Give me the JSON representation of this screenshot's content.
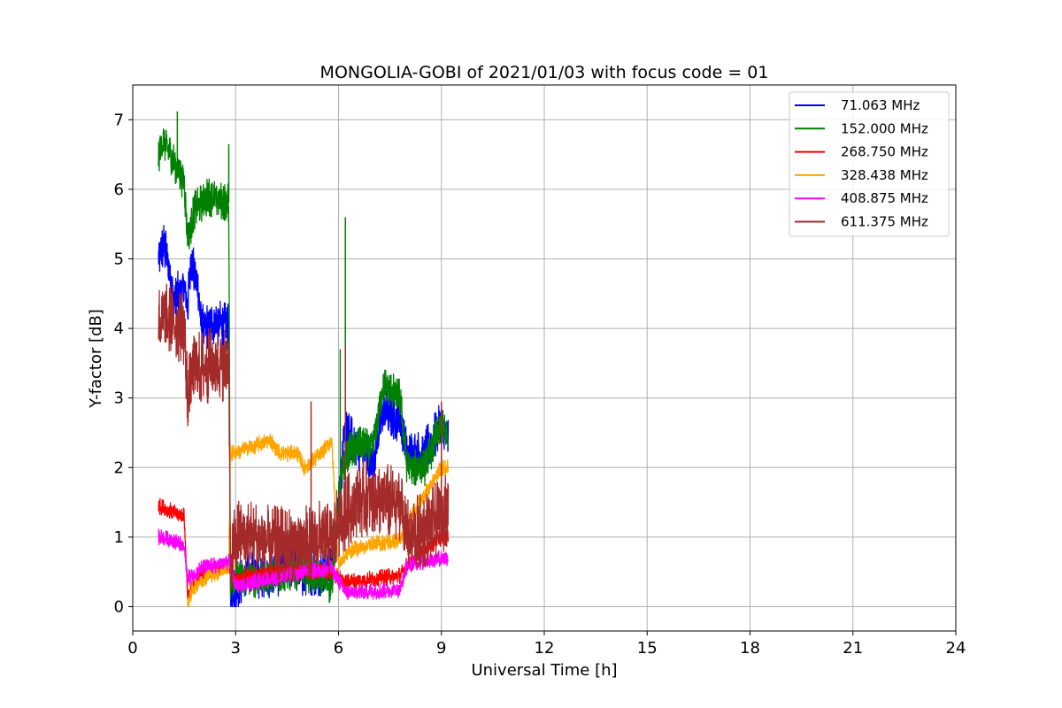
{
  "chart_data": {
    "type": "line",
    "title": "MONGOLIA-GOBI of 2021/01/03 with focus code = 01",
    "xlabel": "Universal Time [h]",
    "ylabel": "Y-factor [dB]",
    "xlim": [
      0,
      24
    ],
    "ylim": [
      -0.35,
      7.5
    ],
    "xticks": [
      0,
      3,
      6,
      9,
      12,
      15,
      18,
      21,
      24
    ],
    "yticks": [
      0,
      1,
      2,
      3,
      4,
      5,
      6,
      7
    ],
    "grid": true,
    "legend_position": "top-right",
    "series": [
      {
        "name": " 71.063 MHz",
        "color": "#0000ff",
        "noise": 0.35,
        "points": [
          [
            0.75,
            5.0
          ],
          [
            0.9,
            5.2
          ],
          [
            1.0,
            5.0
          ],
          [
            1.2,
            4.4
          ],
          [
            1.5,
            4.6
          ],
          [
            1.6,
            4.3
          ],
          [
            1.7,
            5.0
          ],
          [
            1.9,
            4.6
          ],
          [
            2.0,
            4.0
          ],
          [
            2.4,
            4.1
          ],
          [
            2.8,
            4.0
          ],
          [
            2.85,
            0.2
          ],
          [
            3.0,
            0.3
          ],
          [
            3.5,
            0.5
          ],
          [
            4.0,
            0.4
          ],
          [
            4.5,
            0.6
          ],
          [
            5.0,
            0.5
          ],
          [
            5.5,
            0.5
          ],
          [
            5.8,
            0.6
          ],
          [
            6.2,
            2.5
          ],
          [
            6.6,
            2.3
          ],
          [
            7.0,
            2.1
          ],
          [
            7.3,
            2.8
          ],
          [
            7.8,
            2.7
          ],
          [
            8.0,
            2.2
          ],
          [
            8.5,
            2.2
          ],
          [
            9.0,
            2.6
          ],
          [
            9.2,
            2.4
          ]
        ]
      },
      {
        "name": "152.000 MHz",
        "color": "#008000",
        "noise": 0.28,
        "points": [
          [
            0.75,
            6.5
          ],
          [
            0.9,
            6.7
          ],
          [
            1.2,
            6.4
          ],
          [
            1.5,
            6.1
          ],
          [
            1.6,
            5.3
          ],
          [
            1.8,
            5.7
          ],
          [
            2.2,
            5.9
          ],
          [
            2.8,
            5.8
          ],
          [
            2.85,
            0.3
          ],
          [
            3.0,
            0.4
          ],
          [
            3.5,
            0.4
          ],
          [
            4.0,
            0.4
          ],
          [
            4.5,
            0.5
          ],
          [
            5.0,
            0.5
          ],
          [
            5.5,
            0.4
          ],
          [
            5.8,
            0.3
          ],
          [
            6.0,
            1.5
          ],
          [
            6.2,
            2.2
          ],
          [
            6.6,
            2.3
          ],
          [
            7.0,
            2.3
          ],
          [
            7.3,
            3.2
          ],
          [
            7.8,
            3.0
          ],
          [
            8.0,
            2.0
          ],
          [
            8.5,
            2.0
          ],
          [
            9.0,
            2.6
          ],
          [
            9.2,
            2.4
          ]
        ]
      },
      {
        "name": "268.750 MHz",
        "color": "#ff0000",
        "noise": 0.12,
        "points": [
          [
            0.75,
            1.45
          ],
          [
            1.0,
            1.4
          ],
          [
            1.5,
            1.3
          ],
          [
            1.6,
            0.15
          ],
          [
            2.0,
            0.5
          ],
          [
            2.5,
            0.55
          ],
          [
            2.8,
            0.6
          ],
          [
            3.0,
            0.4
          ],
          [
            4.0,
            0.5
          ],
          [
            5.0,
            0.5
          ],
          [
            5.8,
            0.5
          ],
          [
            6.2,
            0.35
          ],
          [
            7.0,
            0.4
          ],
          [
            7.8,
            0.45
          ],
          [
            8.0,
            0.6
          ],
          [
            9.0,
            1.0
          ],
          [
            9.2,
            1.0
          ]
        ]
      },
      {
        "name": "328.438 MHz",
        "color": "#ffa500",
        "noise": 0.12,
        "points": [
          [
            1.6,
            0.05
          ],
          [
            1.8,
            0.3
          ],
          [
            2.2,
            0.45
          ],
          [
            2.8,
            0.55
          ],
          [
            2.85,
            2.2
          ],
          [
            3.5,
            2.3
          ],
          [
            4.0,
            2.4
          ],
          [
            4.3,
            2.2
          ],
          [
            4.8,
            2.2
          ],
          [
            5.0,
            2.0
          ],
          [
            5.5,
            2.2
          ],
          [
            5.8,
            2.4
          ],
          [
            6.0,
            0.6
          ],
          [
            6.3,
            0.8
          ],
          [
            7.0,
            0.9
          ],
          [
            7.8,
            0.95
          ],
          [
            8.0,
            1.2
          ],
          [
            9.0,
            2.0
          ],
          [
            9.2,
            2.0
          ]
        ]
      },
      {
        "name": "408.875 MHz",
        "color": "#ff00ff",
        "noise": 0.12,
        "points": [
          [
            0.75,
            1.0
          ],
          [
            1.2,
            0.95
          ],
          [
            1.5,
            0.85
          ],
          [
            1.6,
            0.4
          ],
          [
            2.0,
            0.55
          ],
          [
            2.5,
            0.6
          ],
          [
            2.8,
            0.65
          ],
          [
            3.0,
            0.3
          ],
          [
            4.0,
            0.4
          ],
          [
            5.0,
            0.5
          ],
          [
            5.8,
            0.55
          ],
          [
            6.2,
            0.2
          ],
          [
            7.0,
            0.22
          ],
          [
            7.8,
            0.25
          ],
          [
            8.0,
            0.6
          ],
          [
            9.0,
            0.7
          ],
          [
            9.2,
            0.7
          ]
        ]
      },
      {
        "name": "611.375 MHz",
        "color": "#a52a2a",
        "noise": 0.55,
        "points": [
          [
            0.75,
            4.1
          ],
          [
            1.2,
            4.1
          ],
          [
            1.5,
            4.0
          ],
          [
            1.6,
            3.0
          ],
          [
            1.8,
            3.4
          ],
          [
            2.5,
            3.5
          ],
          [
            2.8,
            3.5
          ],
          [
            2.85,
            0.5
          ],
          [
            3.0,
            1.0
          ],
          [
            3.5,
            1.0
          ],
          [
            4.0,
            0.9
          ],
          [
            4.5,
            0.9
          ],
          [
            5.0,
            0.9
          ],
          [
            5.5,
            1.0
          ],
          [
            5.8,
            0.9
          ],
          [
            6.0,
            1.2
          ],
          [
            6.5,
            1.5
          ],
          [
            7.0,
            1.6
          ],
          [
            7.5,
            1.5
          ],
          [
            7.8,
            1.5
          ],
          [
            8.0,
            1.0
          ],
          [
            8.5,
            1.1
          ],
          [
            9.0,
            1.3
          ],
          [
            9.2,
            1.4
          ]
        ]
      }
    ],
    "spikes": [
      {
        "series": 1,
        "x": 6.2,
        "y": 5.6
      },
      {
        "series": 1,
        "x": 6.05,
        "y": 3.7
      },
      {
        "series": 1,
        "x": 1.3,
        "y": 7.12
      },
      {
        "series": 1,
        "x": 2.8,
        "y": 6.65
      },
      {
        "series": 5,
        "x": 6.2,
        "y": 3.75
      },
      {
        "series": 5,
        "x": 5.2,
        "y": 2.95
      },
      {
        "series": 5,
        "x": 9.0,
        "y": 2.95
      }
    ]
  }
}
